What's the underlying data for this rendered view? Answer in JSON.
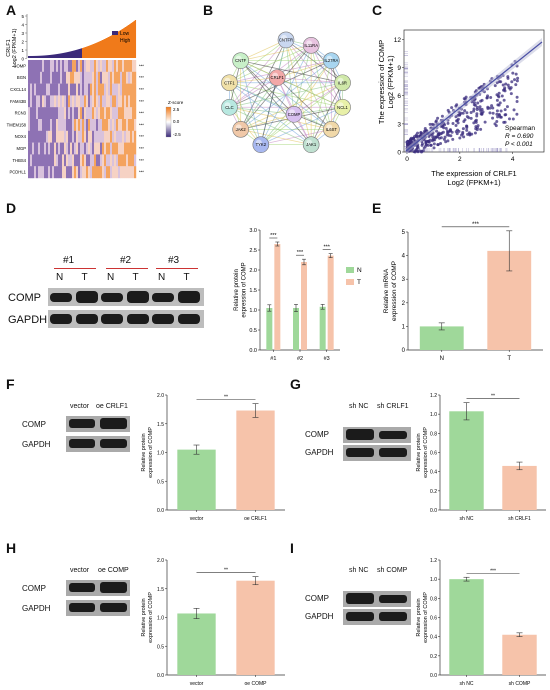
{
  "panels": {
    "A": "A",
    "B": "B",
    "C": "C",
    "D": "D",
    "E": "E",
    "F": "F",
    "G": "G",
    "H": "H",
    "I": "I"
  },
  "panelA": {
    "ylabel_line1": "CRLF1",
    "ylabel_line2": "Log2 (FPKM+1)",
    "yticks": [
      "5",
      "4",
      "3",
      "2",
      "1",
      "0"
    ],
    "legend": [
      {
        "label": "Low",
        "color": "#3b2a7a"
      },
      {
        "label": "High",
        "color": "#f07a1a"
      }
    ],
    "genes": [
      "COMP",
      "BGN",
      "CXCL14",
      "FAM43B",
      "RCN3",
      "TMEM158",
      "NOX4",
      "MGP",
      "THBS4",
      "PCDHL1"
    ],
    "sig": [
      "***",
      "***",
      "***",
      "***",
      "***",
      "***",
      "***",
      "***",
      "***",
      "***"
    ],
    "zscore_title": "Z-score",
    "zscore_ticks": [
      "2.5",
      "0.0",
      "-2.5"
    ]
  },
  "panelB": {
    "nodes": [
      "CNTFR",
      "IL11RA",
      "IL27RA",
      "IL6R",
      "NCL1",
      "IL6ST",
      "JAK1",
      "COMP",
      "TYK2",
      "JAK2",
      "CLC",
      "CTF1",
      "CNTF",
      "CRLF1"
    ]
  },
  "panelC": {
    "ylabel_line1": "The expression of COMP",
    "ylabel_line2": "Log2 (FPKM+1)",
    "xlabel_line1": "The expression of CRLF1",
    "xlabel_line2": "Log2 (FPKM+1)",
    "stat_title": "Spearman",
    "stat_r": "R = 0.690",
    "stat_p": "P < 0.001",
    "yticks": [
      "0",
      "3",
      "6",
      "9",
      "12"
    ],
    "xticks": [
      "0",
      "2",
      "4"
    ]
  },
  "panelD": {
    "groups": [
      "#1",
      "#2",
      "#3"
    ],
    "lanes": [
      "N",
      "T",
      "N",
      "T",
      "N",
      "T"
    ],
    "blots": [
      "COMP",
      "GAPDH"
    ]
  },
  "chart_data": [
    {
      "id": "D",
      "type": "bar",
      "categories": [
        "#1",
        "#2",
        "#3"
      ],
      "series": [
        {
          "name": "N",
          "values": [
            1.05,
            1.05,
            1.08
          ],
          "errors": [
            0.08,
            0.09,
            0.06
          ],
          "color": "#9fd89a"
        },
        {
          "name": "T",
          "values": [
            2.65,
            2.2,
            2.36
          ],
          "errors": [
            0.05,
            0.07,
            0.05
          ],
          "color": "#f6c3aa"
        }
      ],
      "ylabel": "Relative protein expression of COMP",
      "ylim": [
        0,
        3.0
      ],
      "yticks": [
        "0.0",
        "0.5",
        "1.0",
        "1.5",
        "2.0",
        "2.5",
        "3.0"
      ],
      "significance": [
        "***",
        "***",
        "***"
      ],
      "legend_position": "right"
    },
    {
      "id": "E",
      "type": "bar",
      "categories": [
        "N",
        "T"
      ],
      "values": [
        1.0,
        4.2
      ],
      "errors": [
        0.15,
        0.85
      ],
      "colors": [
        "#9fd89a",
        "#f6c3aa"
      ],
      "ylabel": "Relative mRNA expression of COMP",
      "ylim": [
        0,
        5
      ],
      "yticks": [
        "0",
        "1",
        "2",
        "3",
        "4",
        "5"
      ],
      "significance": "***"
    },
    {
      "id": "F",
      "type": "bar",
      "categories": [
        "vector",
        "oe CRLF1"
      ],
      "values": [
        1.05,
        1.73
      ],
      "errors": [
        0.08,
        0.12
      ],
      "colors": [
        "#9fd89a",
        "#f6c3aa"
      ],
      "ylabel": "Relative protein expression of COMP",
      "ylim": [
        0,
        2.0
      ],
      "yticks": [
        "0.0",
        "0.5",
        "1.0",
        "1.5",
        "2.0"
      ],
      "significance": "**"
    },
    {
      "id": "G",
      "type": "bar",
      "categories": [
        "sh NC",
        "sh CRLF1"
      ],
      "values": [
        1.03,
        0.46
      ],
      "errors": [
        0.09,
        0.04
      ],
      "colors": [
        "#9fd89a",
        "#f6c3aa"
      ],
      "ylabel": "Relative protein expression of COMP",
      "ylim": [
        0,
        1.2
      ],
      "yticks": [
        "0.0",
        "0.2",
        "0.4",
        "0.6",
        "0.8",
        "1.0",
        "1.2"
      ],
      "significance": "**"
    },
    {
      "id": "H",
      "type": "bar",
      "categories": [
        "vector",
        "oe COMP"
      ],
      "values": [
        1.07,
        1.64
      ],
      "errors": [
        0.09,
        0.07
      ],
      "colors": [
        "#9fd89a",
        "#f6c3aa"
      ],
      "ylabel": "Relative protein expression of COMP",
      "ylim": [
        0,
        2.0
      ],
      "yticks": [
        "0.0",
        "0.5",
        "1.0",
        "1.5",
        "2.0"
      ],
      "significance": "**"
    },
    {
      "id": "I",
      "type": "bar",
      "categories": [
        "sh NC",
        "sh COMP"
      ],
      "values": [
        1.0,
        0.42
      ],
      "errors": [
        0.02,
        0.02
      ],
      "colors": [
        "#9fd89a",
        "#f6c3aa"
      ],
      "ylabel": "Relative protein expression of COMP",
      "ylim": [
        0,
        1.2
      ],
      "yticks": [
        "0.0",
        "0.2",
        "0.4",
        "0.6",
        "0.8",
        "1.0",
        "1.2"
      ],
      "significance": "***"
    }
  ],
  "blotsFGHI": {
    "F": {
      "lanes": [
        "vector",
        "oe CRLF1"
      ],
      "rows": [
        "COMP",
        "GAPDH"
      ]
    },
    "G": {
      "lanes": [
        "sh NC",
        "sh CRLF1"
      ],
      "rows": [
        "COMP",
        "GAPDH"
      ]
    },
    "H": {
      "lanes": [
        "vector",
        "oe COMP"
      ],
      "rows": [
        "COMP",
        "GAPDH"
      ]
    },
    "I": {
      "lanes": [
        "sh NC",
        "sh COMP"
      ],
      "rows": [
        "COMP",
        "GAPDH"
      ]
    }
  }
}
